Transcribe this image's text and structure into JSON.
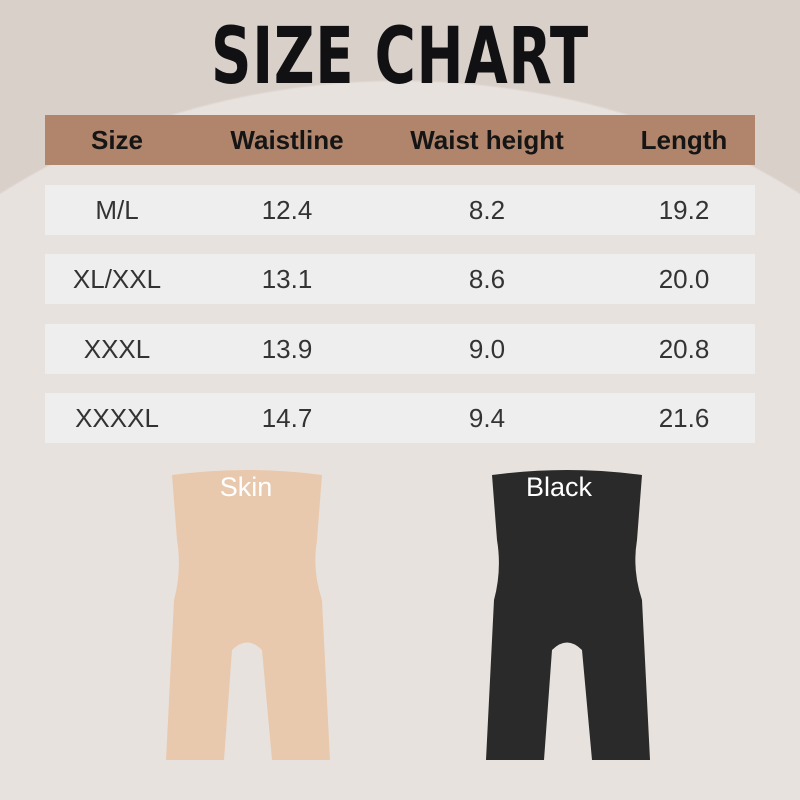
{
  "title": "SIZE CHART",
  "table": {
    "headers": [
      "Size",
      "Waistline",
      "Waist height",
      "Length"
    ],
    "rows": [
      [
        "M/L",
        "12.4",
        "8.2",
        "19.2"
      ],
      [
        "XL/XXL",
        "13.1",
        "8.6",
        "20.0"
      ],
      [
        "XXXL",
        "13.9",
        "9.0",
        "20.8"
      ],
      [
        "XXXXL",
        "14.7",
        "9.4",
        "21.6"
      ]
    ]
  },
  "products": [
    {
      "label": "Skin",
      "color": "#e9c9ad"
    },
    {
      "label": "Black",
      "color": "#2a2a2a"
    }
  ],
  "colors": {
    "background": "#d9d0ca",
    "header": "#b0856b",
    "row": "#efeeee"
  }
}
